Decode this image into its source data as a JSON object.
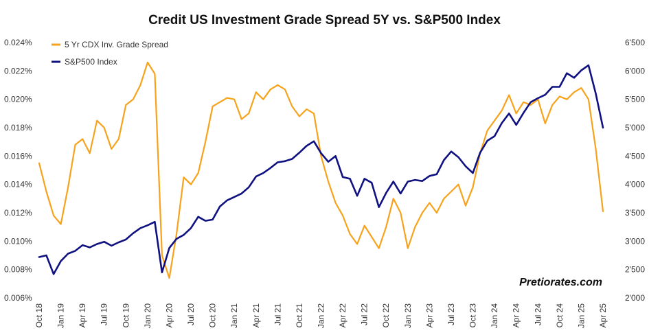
{
  "chart_data": {
    "type": "line",
    "title": "Credit US Investment Grade Spread 5Y vs. S&P500 Index",
    "watermark": "Pretiorates.com",
    "grid": false,
    "legend_position": "top-left",
    "x_ticks": [
      "Oct 18",
      "Jan 19",
      "Apr 19",
      "Jul 19",
      "Oct 19",
      "Jan 20",
      "Apr 20",
      "Jul 20",
      "Oct 20",
      "Jan 21",
      "Apr 21",
      "Jul 21",
      "Oct 21",
      "Jan 22",
      "Apr 22",
      "Jul 22",
      "Oct 22",
      "Jan 23",
      "Apr 23",
      "Jul 23",
      "Oct 23",
      "Jan 24",
      "Apr 24",
      "Jul 24",
      "Oct 24",
      "Jan 25",
      "Apr 25"
    ],
    "y_left": {
      "range": [
        0.006,
        0.024
      ],
      "ticks": [
        "0.006%",
        "0.008%",
        "0.010%",
        "0.012%",
        "0.014%",
        "0.016%",
        "0.018%",
        "0.020%",
        "0.022%",
        "0.024%"
      ]
    },
    "y_right": {
      "range": [
        2000,
        6500
      ],
      "ticks": [
        "2'000",
        "2'500",
        "3'000",
        "3'500",
        "4'000",
        "4'500",
        "5'000",
        "5'500",
        "6'000",
        "6'500"
      ]
    },
    "series": [
      {
        "name": "5 Yr CDX Inv. Grade Spread",
        "axis": "left",
        "color": "#f7a21b",
        "x": [
          "Oct 18",
          "Nov 18",
          "Dec 18",
          "Jan 19",
          "Feb 19",
          "Mar 19",
          "Apr 19",
          "May 19",
          "Jun 19",
          "Jul 19",
          "Aug 19",
          "Sep 19",
          "Oct 19",
          "Nov 19",
          "Dec 19",
          "Jan 20",
          "Feb 20",
          "Mar 20",
          "Apr 20",
          "May 20",
          "Jun 20",
          "Jul 20",
          "Aug 20",
          "Sep 20",
          "Oct 20",
          "Nov 20",
          "Dec 20",
          "Jan 21",
          "Feb 21",
          "Mar 21",
          "Apr 21",
          "May 21",
          "Jun 21",
          "Jul 21",
          "Aug 21",
          "Sep 21",
          "Oct 21",
          "Nov 21",
          "Dec 21",
          "Jan 22",
          "Feb 22",
          "Mar 22",
          "Apr 22",
          "May 22",
          "Jun 22",
          "Jul 22",
          "Aug 22",
          "Sep 22",
          "Oct 22",
          "Nov 22",
          "Dec 22",
          "Jan 23",
          "Feb 23",
          "Mar 23",
          "Apr 23",
          "May 23",
          "Jun 23",
          "Jul 23",
          "Aug 23",
          "Sep 23",
          "Oct 23",
          "Nov 23",
          "Dec 23",
          "Jan 24",
          "Feb 24",
          "Mar 24",
          "Apr 24",
          "May 24",
          "Jun 24",
          "Jul 24",
          "Aug 24",
          "Sep 24",
          "Oct 24",
          "Nov 24",
          "Dec 24",
          "Jan 25",
          "Feb 25",
          "Mar 25",
          "Apr 25"
        ],
        "values": [
          0.0155,
          0.0135,
          0.0118,
          0.0112,
          0.0138,
          0.0168,
          0.0172,
          0.0162,
          0.0185,
          0.018,
          0.0165,
          0.0172,
          0.0196,
          0.02,
          0.021,
          0.0226,
          0.0218,
          0.009,
          0.0074,
          0.0105,
          0.0145,
          0.014,
          0.0148,
          0.017,
          0.0195,
          0.0198,
          0.0201,
          0.02,
          0.0186,
          0.019,
          0.0205,
          0.02,
          0.0207,
          0.021,
          0.0207,
          0.0195,
          0.0188,
          0.0193,
          0.019,
          0.016,
          0.0142,
          0.0127,
          0.0118,
          0.0105,
          0.0098,
          0.0111,
          0.0103,
          0.0095,
          0.011,
          0.013,
          0.012,
          0.0095,
          0.011,
          0.012,
          0.0127,
          0.012,
          0.013,
          0.0135,
          0.014,
          0.0125,
          0.0138,
          0.0162,
          0.0178,
          0.0185,
          0.0192,
          0.0203,
          0.019,
          0.0198,
          0.0196,
          0.02,
          0.0183,
          0.0196,
          0.0202,
          0.02,
          0.0205,
          0.0208,
          0.02,
          0.0165,
          0.0121
        ]
      },
      {
        "name": "S&P500 Index",
        "axis": "right",
        "color": "#0f1180",
        "x": [
          "Oct 18",
          "Nov 18",
          "Dec 18",
          "Jan 19",
          "Feb 19",
          "Mar 19",
          "Apr 19",
          "May 19",
          "Jun 19",
          "Jul 19",
          "Aug 19",
          "Sep 19",
          "Oct 19",
          "Nov 19",
          "Dec 19",
          "Jan 20",
          "Feb 20",
          "Mar 20",
          "Apr 20",
          "May 20",
          "Jun 20",
          "Jul 20",
          "Aug 20",
          "Sep 20",
          "Oct 20",
          "Nov 20",
          "Dec 20",
          "Jan 21",
          "Feb 21",
          "Mar 21",
          "Apr 21",
          "May 21",
          "Jun 21",
          "Jul 21",
          "Aug 21",
          "Sep 21",
          "Oct 21",
          "Nov 21",
          "Dec 21",
          "Jan 22",
          "Feb 22",
          "Mar 22",
          "Apr 22",
          "May 22",
          "Jun 22",
          "Jul 22",
          "Aug 22",
          "Sep 22",
          "Oct 22",
          "Nov 22",
          "Dec 22",
          "Jan 23",
          "Feb 23",
          "Mar 23",
          "Apr 23",
          "May 23",
          "Jun 23",
          "Jul 23",
          "Aug 23",
          "Sep 23",
          "Oct 23",
          "Nov 23",
          "Dec 23",
          "Jan 24",
          "Feb 24",
          "Mar 24",
          "Apr 24",
          "May 24",
          "Jun 24",
          "Jul 24",
          "Aug 24",
          "Sep 24",
          "Oct 24",
          "Nov 24",
          "Dec 24",
          "Jan 25",
          "Feb 25",
          "Mar 25",
          "Apr 25"
        ],
        "values": [
          2720,
          2750,
          2420,
          2650,
          2780,
          2830,
          2930,
          2890,
          2950,
          2990,
          2920,
          2980,
          3030,
          3140,
          3230,
          3280,
          3340,
          2450,
          2880,
          3040,
          3110,
          3230,
          3430,
          3360,
          3380,
          3610,
          3720,
          3780,
          3840,
          3950,
          4140,
          4200,
          4290,
          4390,
          4410,
          4450,
          4560,
          4680,
          4760,
          4550,
          4400,
          4500,
          4130,
          4100,
          3800,
          4100,
          4030,
          3600,
          3850,
          4050,
          3840,
          4050,
          4080,
          4060,
          4150,
          4180,
          4430,
          4580,
          4480,
          4320,
          4200,
          4560,
          4770,
          4850,
          5080,
          5250,
          5050,
          5260,
          5450,
          5520,
          5580,
          5720,
          5720,
          5960,
          5880,
          6010,
          6100,
          5600,
          5000
        ]
      }
    ]
  }
}
